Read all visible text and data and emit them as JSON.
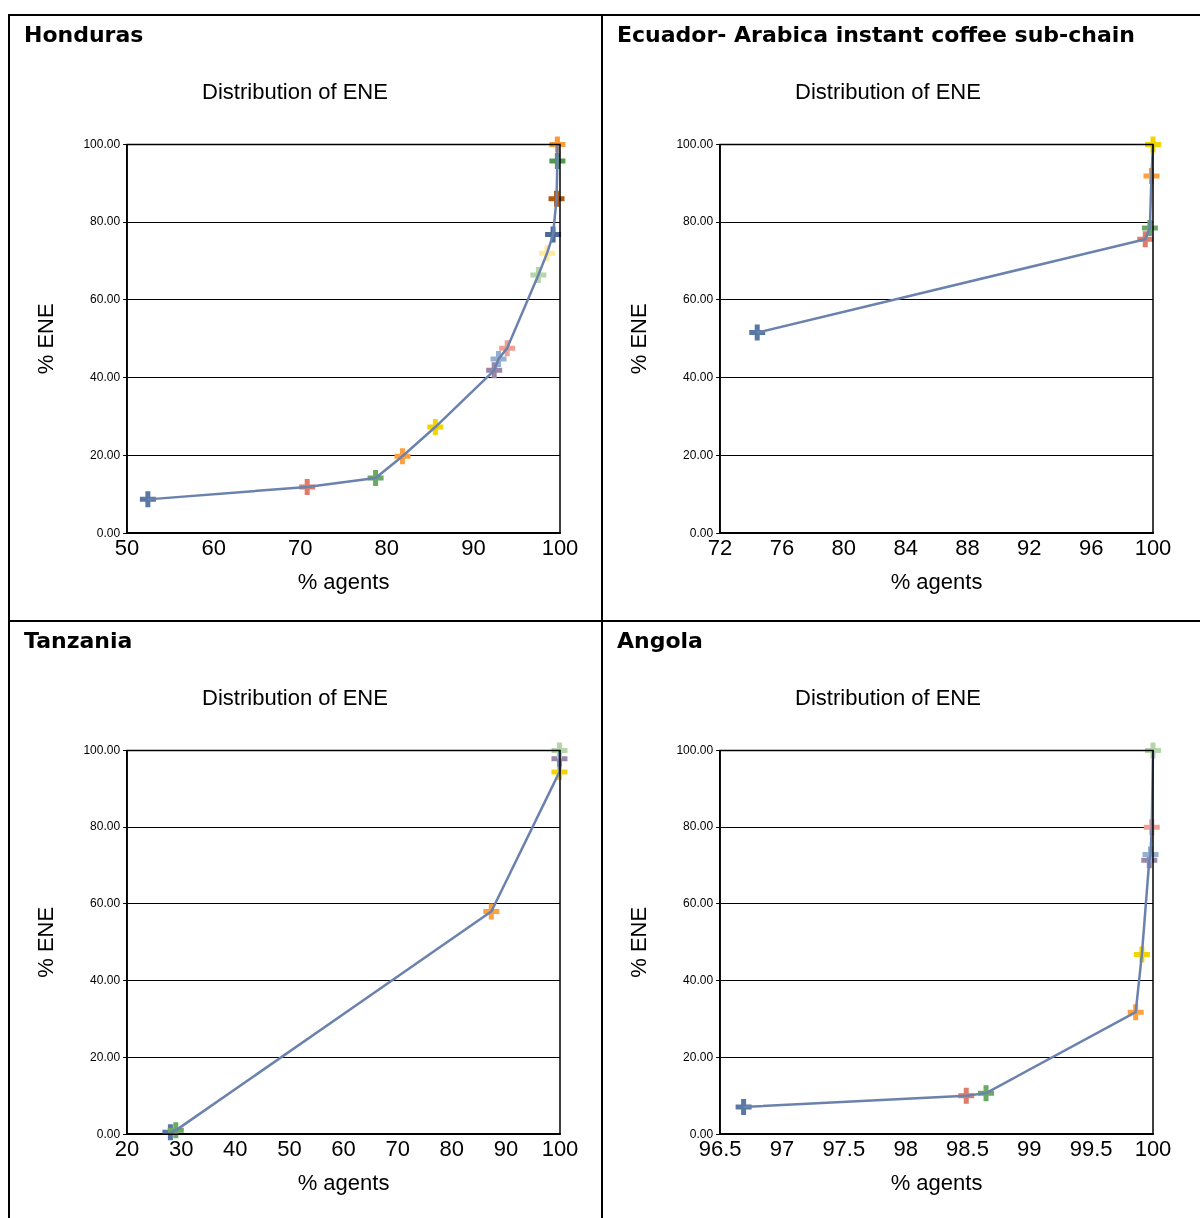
{
  "chart_data": [
    {
      "type": "line",
      "title": "Honduras",
      "subtitle": "Distribution of ENE",
      "xlabel": "% agents",
      "ylabel": "% ENE",
      "marker": "cross",
      "grid": "y",
      "color": "#6a82ad",
      "x": [
        52.4,
        70.8,
        78.7,
        81.8,
        85.6,
        92.4,
        92.9,
        93.9,
        97.5,
        98.5,
        99.2,
        99.6,
        99.7,
        99.7
      ],
      "values": [
        8.7,
        11.9,
        14.2,
        19.8,
        27.3,
        41.9,
        44.8,
        47.6,
        66.4,
        72.0,
        76.8,
        86.0,
        95.7,
        100
      ],
      "colors": [
        "#5a78a5",
        "#e07b6b",
        "#6aaa64",
        "#ffa040",
        "#f2d500",
        "#9a87a8",
        "#94afd0",
        "#eea094",
        "#b5d6a8",
        "#ffeaa0",
        "#4d6a96",
        "#b05a10",
        "#4e9a4e",
        "#ff9933"
      ],
      "xlim": [
        50,
        100
      ],
      "xticks": [
        50,
        60,
        70,
        80,
        90,
        100
      ],
      "ylim": [
        0,
        100
      ],
      "yticks": [
        {
          "value": 0,
          "label": "0.00"
        },
        {
          "value": 20,
          "label": "20.00"
        },
        {
          "value": 40,
          "label": "40.00"
        },
        {
          "value": 60,
          "label": "60.00"
        },
        {
          "value": 80,
          "label": "80.00"
        },
        {
          "value": 100,
          "label": "100.00"
        }
      ]
    },
    {
      "type": "line",
      "title": "Ecuador- Arabica instant coffee sub-chain",
      "subtitle": "Distribution of ENE",
      "xlabel": "% agents",
      "ylabel": "% ENE",
      "marker": "cross",
      "grid": "y",
      "color": "#6a82ad",
      "x": [
        74.4,
        99.5,
        99.8,
        99.9,
        100
      ],
      "values": [
        51.6,
        75.6,
        78.5,
        91.9,
        100
      ],
      "colors": [
        "#5a78a5",
        "#e07b6b",
        "#6aaa64",
        "#ffa040",
        "#f2d500"
      ],
      "xlim": [
        72,
        100
      ],
      "xticks": [
        72,
        76,
        80,
        84,
        88,
        92,
        96,
        100
      ],
      "ylim": [
        0,
        100
      ],
      "yticks": [
        {
          "value": 0,
          "label": "0.00"
        },
        {
          "value": 20,
          "label": "20.00"
        },
        {
          "value": 40,
          "label": "40.00"
        },
        {
          "value": 60,
          "label": "60.00"
        },
        {
          "value": 80,
          "label": "80.00"
        },
        {
          "value": 100,
          "label": "100.00"
        }
      ]
    },
    {
      "type": "line",
      "title": "Tanzania",
      "subtitle": "Distribution of ENE",
      "xlabel": "% agents",
      "ylabel": "% ENE",
      "marker": "cross",
      "grid": "y",
      "color": "#6a82ad",
      "x": [
        28.0,
        29.0,
        87.3,
        99.9,
        99.9,
        99.9
      ],
      "values": [
        0.5,
        1.0,
        58.0,
        94.4,
        97.8,
        100
      ],
      "colors": [
        "#5a78a5",
        "#6aaa64",
        "#ffa040",
        "#f2d500",
        "#9a87a8",
        "#b5d6a8"
      ],
      "xlim": [
        20,
        100
      ],
      "xticks": [
        20,
        30,
        40,
        50,
        60,
        70,
        80,
        90,
        100
      ],
      "ylim": [
        0,
        100
      ],
      "yticks": [
        {
          "value": 0,
          "label": "0.00"
        },
        {
          "value": 20,
          "label": "20.00"
        },
        {
          "value": 40,
          "label": "40.00"
        },
        {
          "value": 60,
          "label": "60.00"
        },
        {
          "value": 80,
          "label": "80.00"
        },
        {
          "value": 100,
          "label": "100.00"
        }
      ]
    },
    {
      "type": "line",
      "title": "Angola",
      "subtitle": "Distribution of ENE",
      "xlabel": "% agents",
      "ylabel": "% ENE",
      "marker": "cross",
      "grid": "y",
      "color": "#6a82ad",
      "x": [
        96.69,
        98.49,
        98.65,
        99.86,
        99.91,
        99.97,
        99.98,
        99.99,
        100
      ],
      "values": [
        7.1,
        10.0,
        10.7,
        31.8,
        46.8,
        71.4,
        72.9,
        80.0,
        100
      ],
      "colors": [
        "#5a78a5",
        "#e07b6b",
        "#6aaa64",
        "#ffa040",
        "#f2d500",
        "#9a87a8",
        "#94afd0",
        "#eea094",
        "#b5d6a8"
      ],
      "xlim": [
        96.5,
        100
      ],
      "xticks": [
        96.5,
        97,
        97.5,
        98,
        98.5,
        99,
        99.5,
        100
      ],
      "ylim": [
        0,
        100
      ],
      "yticks": [
        {
          "value": 0,
          "label": "0.00"
        },
        {
          "value": 20,
          "label": "20.00"
        },
        {
          "value": 40,
          "label": "40.00"
        },
        {
          "value": 60,
          "label": "60.00"
        },
        {
          "value": 80,
          "label": "80.00"
        },
        {
          "value": 100,
          "label": "100.00"
        }
      ]
    }
  ]
}
